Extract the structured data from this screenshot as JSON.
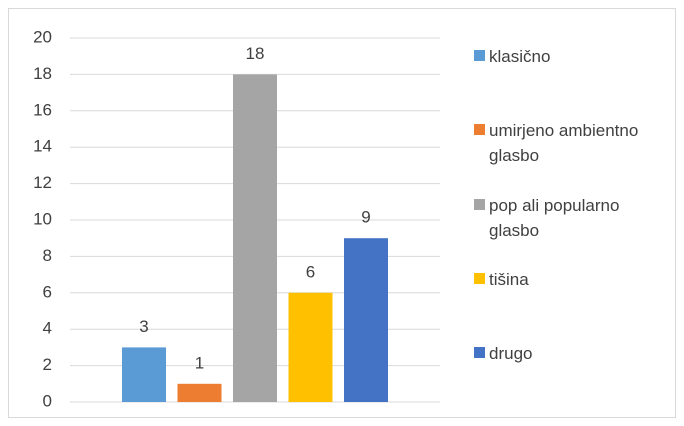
{
  "chart_data": {
    "type": "bar",
    "categories": [
      null
    ],
    "series": [
      {
        "name": "klasično",
        "color": "#5b9bd5",
        "values": [
          3
        ]
      },
      {
        "name": "umirjeno ambientno glasbo",
        "color": "#ed7d31",
        "values": [
          1
        ]
      },
      {
        "name": "pop ali popularno glasbo",
        "color": "#a5a5a5",
        "values": [
          18
        ]
      },
      {
        "name": "tišina",
        "color": "#ffc000",
        "values": [
          6
        ]
      },
      {
        "name": "drugo",
        "color": "#4472c4",
        "values": [
          9
        ]
      }
    ],
    "ylim": [
      0,
      20
    ],
    "yticks": [
      0,
      2,
      4,
      6,
      8,
      10,
      12,
      14,
      16,
      18,
      20
    ],
    "grid": true,
    "legend": "right"
  }
}
